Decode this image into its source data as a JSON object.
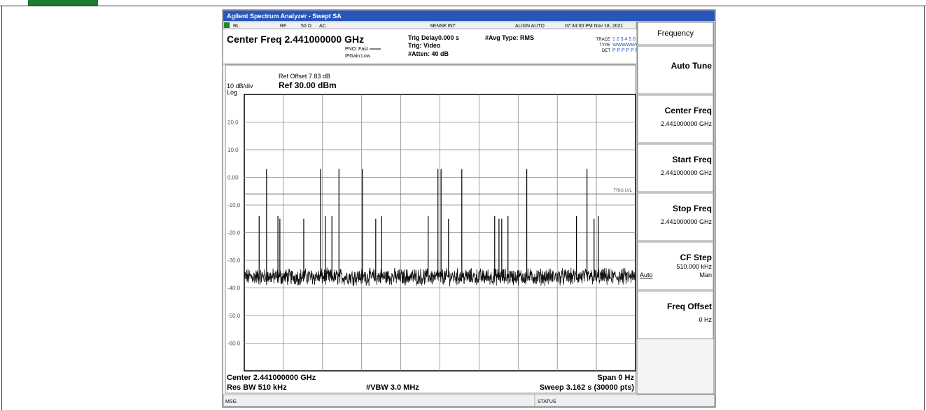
{
  "window_title": "Agilent Spectrum Analyzer - Swept SA",
  "status_bar": {
    "rl": "RL",
    "rf": "RF",
    "impedance": "50 Ω",
    "coupling": "AC",
    "sense": "SENSE:INT",
    "align": "ALIGN AUTO",
    "datetime": "07:34:00 PM Nov 18, 2021"
  },
  "settings": {
    "center_freq": "Center Freq 2.441000000 GHz",
    "pno": "PNO: Fast",
    "ifgain": "IFGain:Low",
    "trig_delay": "Trig Delay0.000 s",
    "trig": "Trig: Video",
    "atten": "#Atten: 40 dB",
    "avg_type": "#Avg Type: RMS",
    "trace_label": "TRACE",
    "trace_nums": "1 2 3 4 5 6",
    "type_label": "TYPE",
    "type_vals": "WWWWWW",
    "det_label": "DET",
    "det_vals": "P P P P P P"
  },
  "plot": {
    "ref_offset": "Ref Offset 7.83 dB",
    "scale": "10 dB/div",
    "ref_level": "Ref 30.00 dBm",
    "scale_type": "Log",
    "y_labels": [
      "20.0",
      "10.0",
      "0.00",
      "-10.0",
      "-20.0",
      "-30.0",
      "-40.0",
      "-50.0",
      "-60.0"
    ],
    "trig_lvl": "TRIG LVL",
    "trace": {
      "xlim": [
        0,
        1
      ],
      "ylim": [
        -70,
        30
      ],
      "noise_floor": -36,
      "trig_level": -6,
      "spikes": [
        {
          "x": 0.038,
          "level": -14
        },
        {
          "x": 0.057,
          "level": 3
        },
        {
          "x": 0.086,
          "level": -14
        },
        {
          "x": 0.091,
          "level": -15
        },
        {
          "x": 0.152,
          "level": -15
        },
        {
          "x": 0.195,
          "level": 3
        },
        {
          "x": 0.207,
          "level": -14
        },
        {
          "x": 0.224,
          "level": -14
        },
        {
          "x": 0.242,
          "level": 3
        },
        {
          "x": 0.302,
          "level": 3
        },
        {
          "x": 0.336,
          "level": -15
        },
        {
          "x": 0.351,
          "level": -14
        },
        {
          "x": 0.47,
          "level": -14
        },
        {
          "x": 0.495,
          "level": 3
        },
        {
          "x": 0.503,
          "level": 3
        },
        {
          "x": 0.522,
          "level": -15
        },
        {
          "x": 0.556,
          "level": 3
        },
        {
          "x": 0.64,
          "level": -14
        },
        {
          "x": 0.651,
          "level": -15
        },
        {
          "x": 0.658,
          "level": -15
        },
        {
          "x": 0.674,
          "level": -14
        },
        {
          "x": 0.722,
          "level": 3
        },
        {
          "x": 0.849,
          "level": -14
        },
        {
          "x": 0.876,
          "level": 3
        },
        {
          "x": 0.894,
          "level": -15
        },
        {
          "x": 0.905,
          "level": -14
        }
      ]
    }
  },
  "footer": {
    "center": "Center 2.441000000 GHz",
    "span": "Span 0 Hz",
    "rbw": "Res BW 510 kHz",
    "vbw": "#VBW 3.0 MHz",
    "sweep": "Sweep  3.162 s (30000 pts)"
  },
  "message_bar": {
    "msg": "MSG",
    "status": "STATUS"
  },
  "softkeys": {
    "menu": "Frequency",
    "keys": [
      {
        "label": "Auto Tune"
      },
      {
        "label": "Center Freq",
        "value": "2.441000000 GHz"
      },
      {
        "label": "Start Freq",
        "value": "2.441000000 GHz"
      },
      {
        "label": "Stop Freq",
        "value": "2.441000000 GHz"
      },
      {
        "label": "CF Step",
        "value": "510.000 kHz",
        "auto": "Auto",
        "man": "Man"
      },
      {
        "label": "Freq Offset",
        "value": "0 Hz"
      }
    ]
  }
}
